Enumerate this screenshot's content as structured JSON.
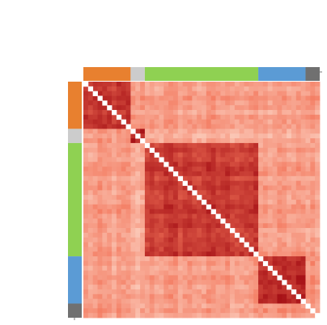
{
  "chart_data": {
    "type": "heatmap",
    "title": "",
    "xlabel": "",
    "ylabel": "",
    "grid": false,
    "legend": "none",
    "colorscale": {
      "low": "#fde0d2",
      "mid": "#f3755a",
      "high": "#a50f15",
      "diagonal": "#ffffff"
    },
    "n": 50,
    "groups": [
      {
        "id": "g1",
        "size": 10,
        "color": "#e8802f"
      },
      {
        "id": "g2",
        "size": 3,
        "color": "#cccccc"
      },
      {
        "id": "g3",
        "size": 24,
        "color": "#8fd152"
      },
      {
        "id": "g4",
        "size": 10,
        "color": "#5b9bd5"
      },
      {
        "id": "g5",
        "size": 3,
        "color": "#707070"
      }
    ],
    "mean_similarity": [
      [
        0.78,
        0.3,
        0.3,
        0.28,
        0.35
      ],
      [
        0.3,
        0.85,
        0.22,
        0.22,
        0.25
      ],
      [
        0.3,
        0.22,
        0.78,
        0.3,
        0.32
      ],
      [
        0.28,
        0.22,
        0.3,
        0.85,
        0.36
      ],
      [
        0.35,
        0.25,
        0.32,
        0.36,
        0.38
      ]
    ]
  }
}
